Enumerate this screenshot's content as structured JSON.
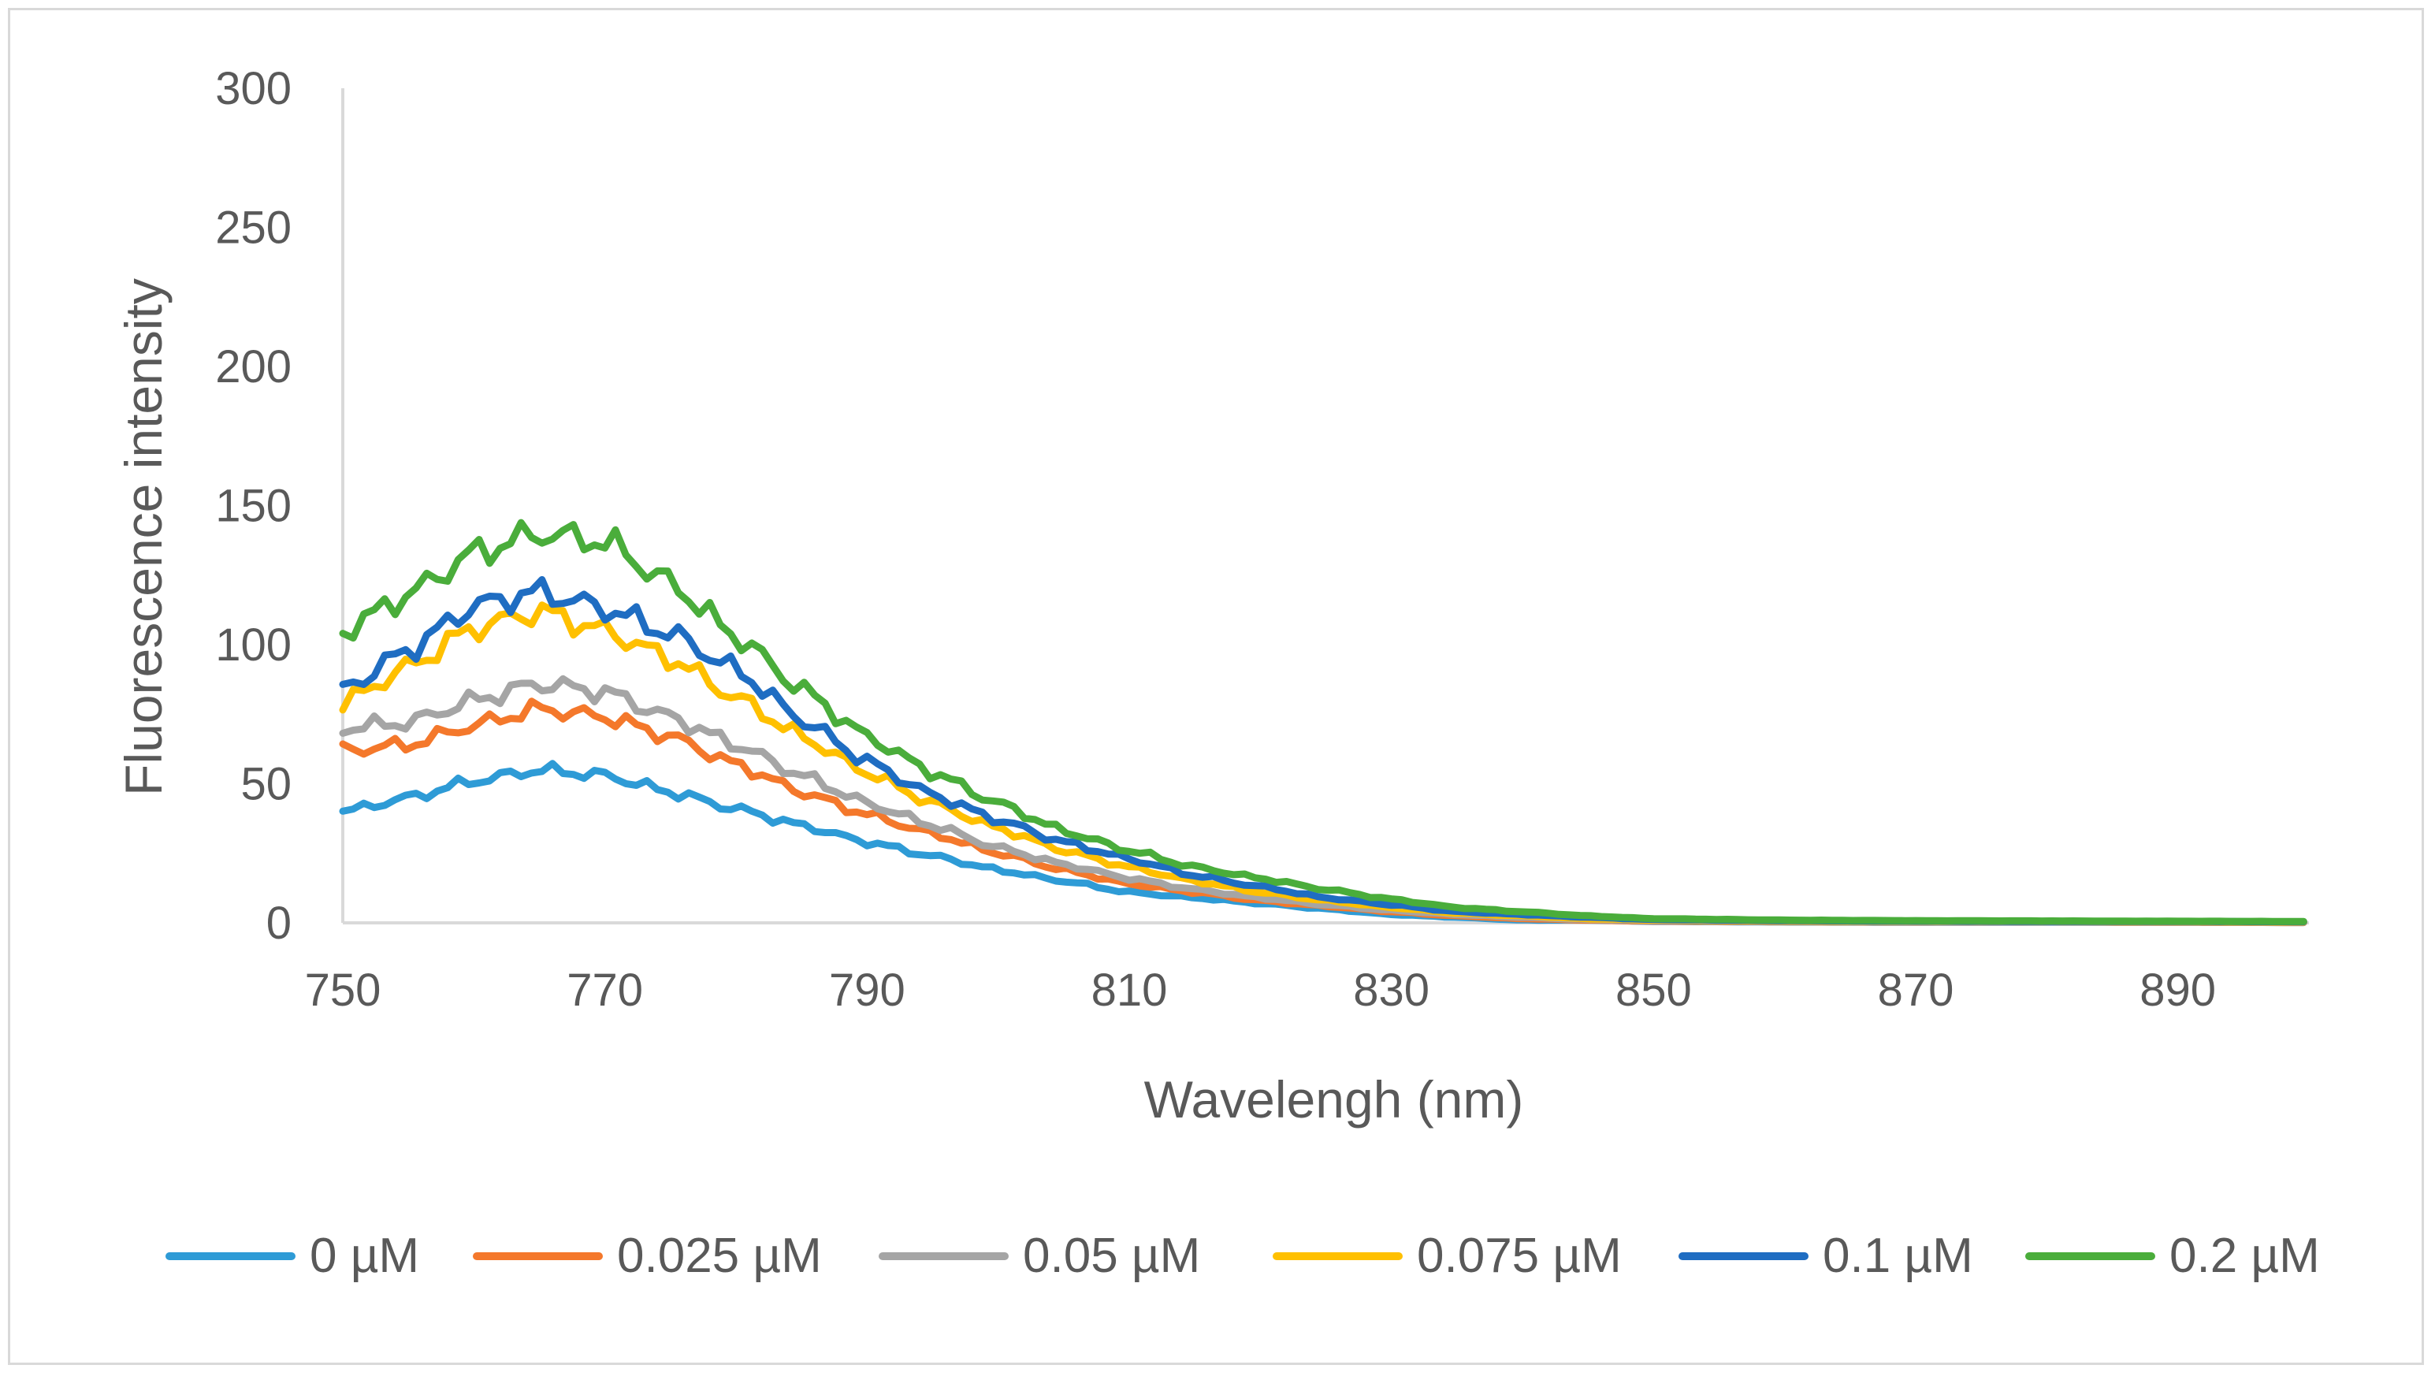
{
  "chart_data": {
    "type": "line",
    "title": "",
    "xlabel": "Wavelengh (nm)",
    "ylabel": "Fluorescence intensity",
    "xlim": [
      750,
      900
    ],
    "ylim": [
      0,
      300
    ],
    "x_ticks": [
      "750",
      "770",
      "790",
      "810",
      "830",
      "850",
      "870",
      "890"
    ],
    "y_ticks": [
      "0",
      "50",
      "100",
      "150",
      "200",
      "250",
      "300"
    ],
    "grid": false,
    "legend_position": "bottom",
    "x": [
      750,
      755,
      760,
      765,
      770,
      775,
      780,
      785,
      790,
      795,
      800,
      805,
      810,
      815,
      820,
      825,
      830,
      835,
      840,
      845,
      850,
      860,
      870,
      880,
      890,
      900
    ],
    "series": [
      {
        "name": "0 µM",
        "color": "#2E9BD6",
        "values": [
          40,
          45,
          51,
          55,
          53,
          47,
          41,
          35,
          29,
          24,
          19,
          15,
          11,
          9,
          7,
          5,
          3,
          2,
          1,
          1,
          0.5,
          0.3,
          0.2,
          0.2,
          0.2,
          0.1
        ]
      },
      {
        "name": "0.025 µM",
        "color": "#F4782B",
        "values": [
          62,
          64,
          71,
          77,
          74,
          67,
          57,
          47,
          39,
          32,
          25,
          19,
          14,
          11,
          8,
          6,
          4,
          2.5,
          1.5,
          1,
          0.6,
          0.4,
          0.3,
          0.3,
          0.2,
          0.1
        ]
      },
      {
        "name": "0.05 µM",
        "color": "#A5A5A5",
        "values": [
          70,
          72,
          80,
          86,
          83,
          74,
          64,
          53,
          43,
          35,
          27,
          21,
          16,
          12,
          9,
          6.5,
          4.5,
          3,
          2,
          1.2,
          0.8,
          0.5,
          0.4,
          0.3,
          0.3,
          0.2
        ]
      },
      {
        "name": "0.075 µM",
        "color": "#FFC000",
        "values": [
          79,
          92,
          106,
          112,
          105,
          95,
          81,
          67,
          54,
          43,
          34,
          26,
          20,
          15,
          11,
          8,
          5.5,
          3.5,
          2.5,
          1.5,
          1,
          0.6,
          0.5,
          0.4,
          0.4,
          0.3
        ]
      },
      {
        "name": "0.1 µM",
        "color": "#1F6DC2",
        "values": [
          84,
          98,
          114,
          119,
          113,
          104,
          91,
          73,
          58,
          46,
          37,
          29,
          23,
          17,
          13,
          9,
          6.5,
          4,
          3,
          2,
          1.2,
          0.8,
          0.6,
          0.5,
          0.5,
          0.4
        ]
      },
      {
        "name": "0.2 µM",
        "color": "#4AAD3B",
        "values": [
          105,
          118,
          133,
          140,
          137,
          122,
          103,
          84,
          67,
          54,
          43,
          33,
          26,
          20,
          16,
          12,
          8.5,
          5.5,
          4,
          2.5,
          1.5,
          1,
          0.8,
          0.7,
          0.6,
          0.5
        ]
      }
    ]
  }
}
